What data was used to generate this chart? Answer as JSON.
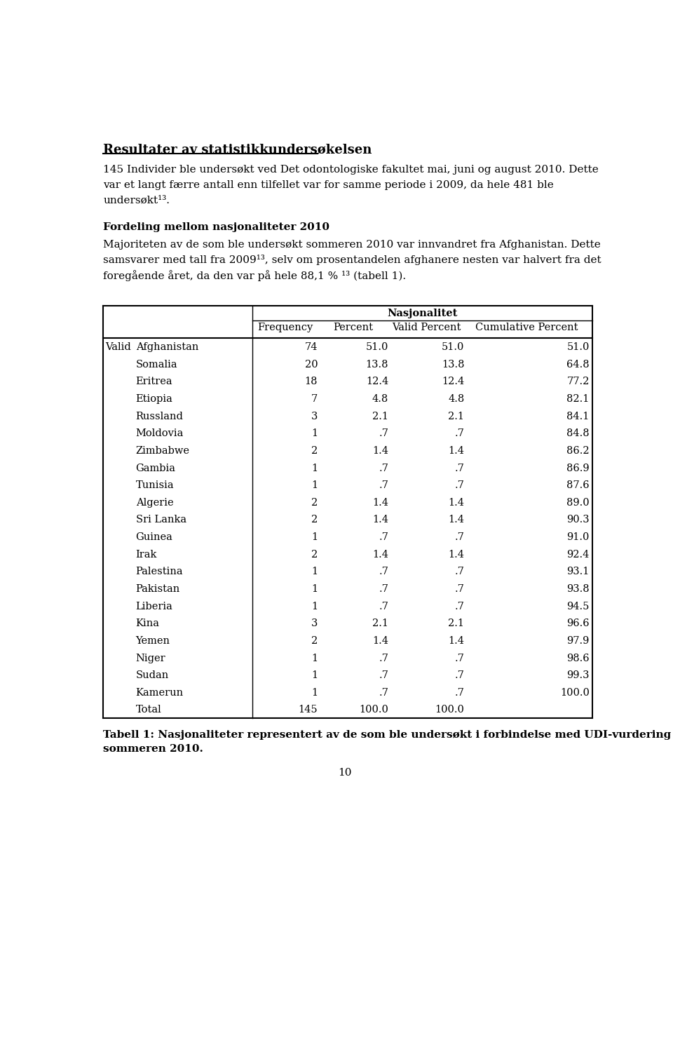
{
  "title": "Resultater av statistikkundersøkelsen",
  "para1_lines": [
    "145 Individer ble undersøkt ved Det odontologiske fakultet mai, juni og august 2010. Dette",
    "var et langt færre antall enn tilfellet var for samme periode i 2009, da hele 481 ble",
    "undersøkt¹³."
  ],
  "heading2": "Fordeling mellom nasjonaliteter 2010",
  "para2_lines": [
    "Majoriteten av de som ble undersøkt sommeren 2010 var innvandret fra Afghanistan. Dette",
    "samsvarer med tall fra 2009¹³, selv om prosentandelen afghanere nesten var halvert fra det",
    "foregående året, da den var på hele 88,1 % ¹³ (tabell 1)."
  ],
  "table_title": "Nasjonalitet",
  "col_headers": [
    "Frequency",
    "Percent",
    "Valid Percent",
    "Cumulative Percent"
  ],
  "rows": [
    [
      "Valid",
      "Afghanistan",
      "74",
      "51.0",
      "51.0",
      "51.0"
    ],
    [
      "",
      "Somalia",
      "20",
      "13.8",
      "13.8",
      "64.8"
    ],
    [
      "",
      "Eritrea",
      "18",
      "12.4",
      "12.4",
      "77.2"
    ],
    [
      "",
      "Etiopia",
      "7",
      "4.8",
      "4.8",
      "82.1"
    ],
    [
      "",
      "Russland",
      "3",
      "2.1",
      "2.1",
      "84.1"
    ],
    [
      "",
      "Moldovia",
      "1",
      ".7",
      ".7",
      "84.8"
    ],
    [
      "",
      "Zimbabwe",
      "2",
      "1.4",
      "1.4",
      "86.2"
    ],
    [
      "",
      "Gambia",
      "1",
      ".7",
      ".7",
      "86.9"
    ],
    [
      "",
      "Tunisia",
      "1",
      ".7",
      ".7",
      "87.6"
    ],
    [
      "",
      "Algerie",
      "2",
      "1.4",
      "1.4",
      "89.0"
    ],
    [
      "",
      "Sri Lanka",
      "2",
      "1.4",
      "1.4",
      "90.3"
    ],
    [
      "",
      "Guinea",
      "1",
      ".7",
      ".7",
      "91.0"
    ],
    [
      "",
      "Irak",
      "2",
      "1.4",
      "1.4",
      "92.4"
    ],
    [
      "",
      "Palestina",
      "1",
      ".7",
      ".7",
      "93.1"
    ],
    [
      "",
      "Pakistan",
      "1",
      ".7",
      ".7",
      "93.8"
    ],
    [
      "",
      "Liberia",
      "1",
      ".7",
      ".7",
      "94.5"
    ],
    [
      "",
      "Kina",
      "3",
      "2.1",
      "2.1",
      "96.6"
    ],
    [
      "",
      "Yemen",
      "2",
      "1.4",
      "1.4",
      "97.9"
    ],
    [
      "",
      "Niger",
      "1",
      ".7",
      ".7",
      "98.6"
    ],
    [
      "",
      "Sudan",
      "1",
      ".7",
      ".7",
      "99.3"
    ],
    [
      "",
      "Kamerun",
      "1",
      ".7",
      ".7",
      "100.0"
    ],
    [
      "",
      "Total",
      "145",
      "100.0",
      "100.0",
      ""
    ]
  ],
  "caption_line1": "Tabell 1: Nasjonaliteter representert av de som ble undersøkt i forbindelse med UDI-vurdering",
  "caption_line2": "sommeren 2010.",
  "page_number": "10",
  "bg_color": "#ffffff",
  "text_color": "#000000"
}
